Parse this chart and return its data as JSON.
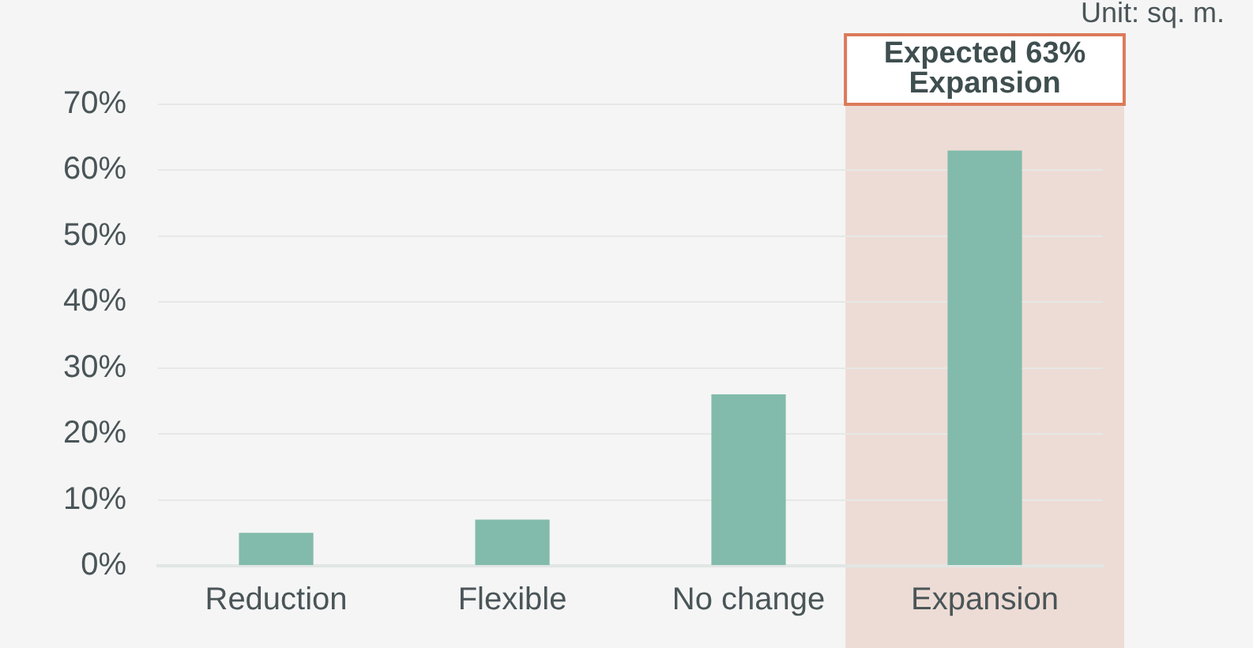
{
  "chart_data": {
    "type": "bar",
    "categories": [
      "Reduction",
      "Flexible",
      "No change",
      "Expansion"
    ],
    "values": [
      5,
      7,
      26,
      63
    ],
    "color": "#82bbab",
    "ylim": [
      0,
      70
    ],
    "yticks": [
      {
        "value": 0,
        "label": "0%"
      },
      {
        "value": 10,
        "label": "10%"
      },
      {
        "value": 20,
        "label": "20%"
      },
      {
        "value": 30,
        "label": "30%"
      },
      {
        "value": 40,
        "label": "40%"
      },
      {
        "value": 50,
        "label": "50%"
      },
      {
        "value": 60,
        "label": "60%"
      },
      {
        "value": 70,
        "label": "70%"
      }
    ],
    "grid": "y",
    "legend": false,
    "bands": [
      {
        "axis": "x",
        "from": "Expansion",
        "to": "Expansion",
        "color": "#eddcd5"
      }
    ],
    "annotations": [
      "Unit: sq. m.",
      "Expected 63% Expansion"
    ]
  }
}
